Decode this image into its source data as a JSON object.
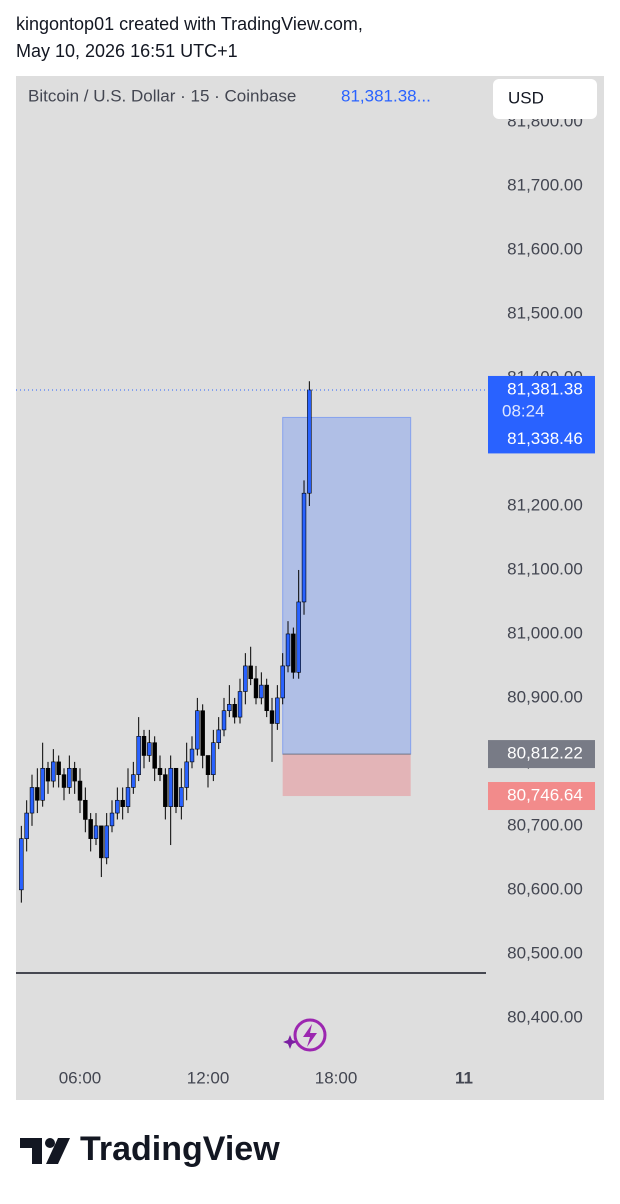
{
  "header": {
    "line1": "kingontop01 created with TradingView.com,",
    "line2": "May 10, 2026 16:51 UTC+1"
  },
  "chart_data": {
    "type": "candlestick",
    "legend_title": "Bitcoin / U.S. Dollar · 15 · Coinbase",
    "legend_price": "81,381.38...",
    "currency_button": "USD",
    "up_color": "#2962ff",
    "down_color": "#000000",
    "x": [
      3.25,
      3.5,
      3.75,
      4,
      4.25,
      4.5,
      4.75,
      5,
      5.25,
      5.5,
      5.75,
      6,
      6.25,
      6.5,
      6.75,
      7,
      7.25,
      7.5,
      7.75,
      8,
      8.25,
      8.5,
      8.75,
      9,
      9.25,
      9.5,
      9.75,
      10,
      10.25,
      10.5,
      10.75,
      11,
      11.25,
      11.5,
      11.75,
      12,
      12.25,
      12.5,
      12.75,
      13,
      13.25,
      13.5,
      13.75,
      14,
      14.25,
      14.5,
      14.75,
      15,
      15.25,
      15.5,
      15.75,
      16,
      16.25,
      16.5,
      16.75
    ],
    "open": [
      80600,
      80680,
      80720,
      80760,
      80740,
      80790,
      80770,
      80800,
      80780,
      80760,
      80790,
      80770,
      80740,
      80710,
      80680,
      80700,
      80650,
      80700,
      80720,
      80740,
      80730,
      80760,
      80780,
      80840,
      80810,
      80830,
      80790,
      80780,
      80730,
      80790,
      80730,
      80760,
      80800,
      80820,
      80880,
      80810,
      80780,
      80830,
      80850,
      80880,
      80890,
      80870,
      80910,
      80950,
      80930,
      80900,
      80920,
      80880,
      80860,
      80900,
      80950,
      81000,
      80940,
      81050,
      81220
    ],
    "high": [
      80700,
      80740,
      80780,
      80790,
      80830,
      80800,
      80820,
      80810,
      80790,
      80810,
      80800,
      80790,
      80760,
      80720,
      80720,
      80700,
      80720,
      80740,
      80760,
      80760,
      80790,
      80800,
      80870,
      80850,
      80850,
      80840,
      80810,
      80790,
      80810,
      80790,
      80790,
      80830,
      80840,
      80900,
      80890,
      80810,
      80850,
      80870,
      80900,
      80920,
      80900,
      80930,
      80970,
      80980,
      80950,
      80940,
      80930,
      80900,
      80920,
      80970,
      81020,
      81010,
      81100,
      81240,
      81395
    ],
    "low": [
      80580,
      80660,
      80700,
      80720,
      80730,
      80750,
      80760,
      80760,
      80740,
      80750,
      80750,
      80720,
      80690,
      80660,
      80670,
      80620,
      80640,
      80690,
      80710,
      80710,
      80720,
      80750,
      80770,
      80790,
      80800,
      80770,
      80770,
      80710,
      80670,
      80720,
      80710,
      80740,
      80790,
      80810,
      80790,
      80760,
      80770,
      80820,
      80840,
      80870,
      80860,
      80860,
      80890,
      80920,
      80890,
      80890,
      80870,
      80800,
      80850,
      80890,
      80940,
      80930,
      80930,
      81030,
      81200
    ],
    "close": [
      80680,
      80720,
      80760,
      80740,
      80790,
      80770,
      80800,
      80780,
      80760,
      80790,
      80770,
      80740,
      80710,
      80680,
      80700,
      80650,
      80700,
      80720,
      80740,
      80730,
      80760,
      80780,
      80840,
      80810,
      80830,
      80790,
      80780,
      80730,
      80790,
      80730,
      80760,
      80800,
      80820,
      80880,
      80810,
      80780,
      80830,
      80850,
      80880,
      80890,
      80870,
      80910,
      80950,
      80930,
      80900,
      80920,
      80880,
      80860,
      80900,
      80950,
      81000,
      80940,
      81050,
      81220,
      81381.38
    ],
    "xlim": [
      3,
      25.03
    ],
    "xticks": [
      {
        "value": 6,
        "label": "06:00"
      },
      {
        "value": 12,
        "label": "12:00"
      },
      {
        "value": 18,
        "label": "18:00"
      },
      {
        "value": 24,
        "label": "11"
      }
    ],
    "ylim": [
      80334,
      81819
    ],
    "yticks": [
      {
        "value": 80400,
        "label": "80,400.00"
      },
      {
        "value": 80500,
        "label": "80,500.00"
      },
      {
        "value": 80600,
        "label": "80,600.00"
      },
      {
        "value": 80700,
        "label": "80,700.00"
      },
      {
        "value": 80800,
        "label": "80,800.00"
      },
      {
        "value": 80900,
        "label": "80,900.00"
      },
      {
        "value": 81000,
        "label": "81,000.00"
      },
      {
        "value": 81100,
        "label": "81,100.00"
      },
      {
        "value": 81200,
        "label": "81,200.00"
      },
      {
        "value": 81300,
        "label": "81,300.00"
      },
      {
        "value": 81400,
        "label": "81,400.00"
      },
      {
        "value": 81500,
        "label": "81,500.00"
      },
      {
        "value": 81600,
        "label": "81,600.00"
      },
      {
        "value": 81700,
        "label": "81,700.00"
      },
      {
        "value": 81800,
        "label": "81,800.00"
      }
    ],
    "current_price": {
      "value": 81381.38,
      "label": "81,381.38"
    },
    "countdown": "08:24",
    "position": {
      "start": 15.5,
      "end": 21.5,
      "target": {
        "value": 81338.46,
        "label": "81,338.46"
      },
      "entry": {
        "value": 80812.22,
        "label": "80,812.22"
      },
      "stop": {
        "value": 80746.64,
        "label": "80,746.64"
      }
    },
    "horizontal_line": 80470
  },
  "footer": {
    "logo": "TradingView"
  }
}
